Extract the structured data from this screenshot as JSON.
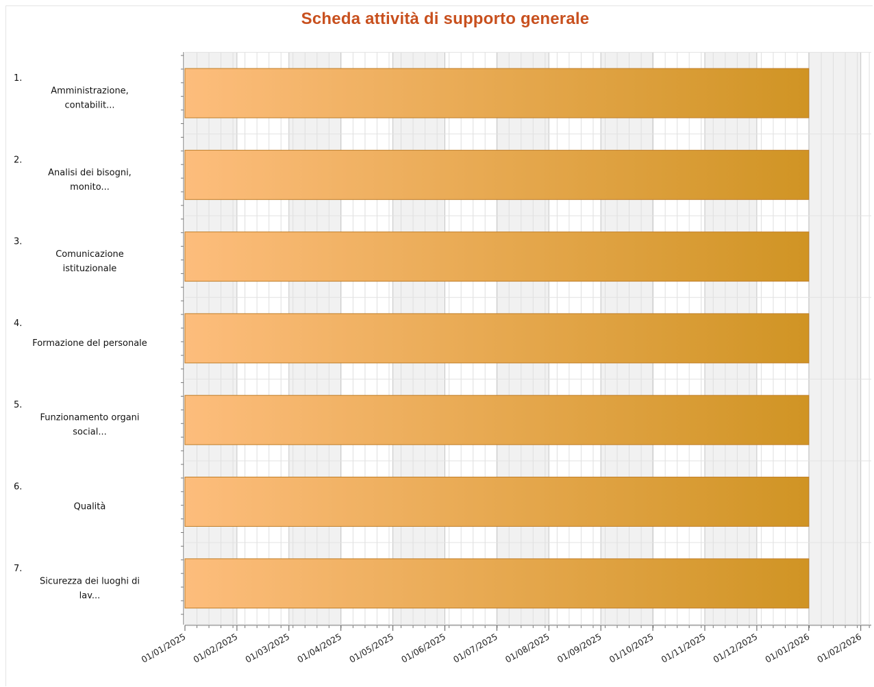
{
  "chart_data": {
    "type": "gantt",
    "title": "Scheda attività di supporto generale",
    "x_axis": {
      "type": "date",
      "min": "2025-01-01",
      "max": "2026-02-01",
      "tick_labels": [
        "01/01/2025",
        "01/02/2025",
        "01/03/2025",
        "01/04/2025",
        "01/05/2025",
        "01/06/2025",
        "01/07/2025",
        "01/08/2025",
        "01/09/2025",
        "01/10/2025",
        "01/11/2025",
        "01/12/2025",
        "01/01/2026",
        "01/02/2026"
      ],
      "label_rotation": "rotated"
    },
    "grid": true,
    "alternate_month_shading": true,
    "bar_gradient": [
      "#fdbd7c",
      "#d09424"
    ],
    "bar_border": "#c07e28",
    "tasks": [
      {
        "number": "1.",
        "label": [
          "Amministrazione,",
          "contabilit..."
        ],
        "start": "2025-01-01",
        "end": "2026-01-01"
      },
      {
        "number": "2.",
        "label": [
          "Analisi dei bisogni,",
          "monito..."
        ],
        "start": "2025-01-01",
        "end": "2026-01-01"
      },
      {
        "number": "3.",
        "label": [
          "Comunicazione",
          "istituzionale"
        ],
        "start": "2025-01-01",
        "end": "2026-01-01"
      },
      {
        "number": "4.",
        "label": [
          "Formazione del personale"
        ],
        "start": "2025-01-01",
        "end": "2026-01-01"
      },
      {
        "number": "5.",
        "label": [
          "Funzionamento organi",
          "social..."
        ],
        "start": "2025-01-01",
        "end": "2026-01-01"
      },
      {
        "number": "6.",
        "label": [
          "Qualità"
        ],
        "start": "2025-01-01",
        "end": "2026-01-01"
      },
      {
        "number": "7.",
        "label": [
          "Sicurezza dei luoghi di",
          "lav..."
        ],
        "start": "2025-01-01",
        "end": "2026-01-01"
      }
    ]
  }
}
